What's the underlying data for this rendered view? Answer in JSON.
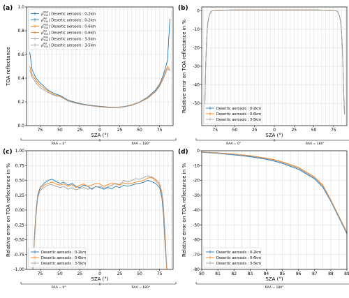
{
  "colors": {
    "s1": "#1f77b4",
    "s2": "#ff7f0e",
    "s3": "#a0a0a0"
  },
  "chart_data": [
    {
      "panel": "(a)",
      "type": "line",
      "xlabel": "SZA (°)",
      "ylabel": "TOA reflectance",
      "x_ticks": [
        "75",
        "50",
        "25",
        "0",
        "25",
        "50",
        "75"
      ],
      "y_ticks": [
        "0.0",
        "0.2",
        "0.4",
        "0.6",
        "0.8",
        "1.0"
      ],
      "ylim": [
        0.0,
        1.0
      ],
      "raa_left": "RAA = 0°",
      "raa_right": "RAA = 180°",
      "legend_position": "top-left",
      "legend": [
        {
          "symbol": "ρ",
          "sup": "Mod",
          "sub": "TOA",
          "label": "| Desertic aerosols : 0-2km",
          "color": "s1"
        },
        {
          "symbol": "ρ",
          "sup": "Ref",
          "sub": "TOA",
          "label": "| Desertic aerosols : 0-2km",
          "color": "s1"
        },
        {
          "symbol": "ρ",
          "sup": "Mod",
          "sub": "TOA",
          "label": "| Desertic aerosols : 0-6km",
          "color": "s2"
        },
        {
          "symbol": "ρ",
          "sup": "Ref",
          "sub": "TOA",
          "label": "| Desertic aerosols : 0-6km",
          "color": "s2"
        },
        {
          "symbol": "ρ",
          "sup": "Mod",
          "sub": "TOA",
          "label": "| Desertic aerosols : 3-5km",
          "color": "s3"
        },
        {
          "symbol": "ρ",
          "sup": "Ref",
          "sub": "TOA",
          "label": "| Desertic aerosols : 3-5km",
          "color": "s3"
        }
      ],
      "x": [
        -88,
        -85,
        -80,
        -75,
        -70,
        -65,
        -60,
        -55,
        -50,
        -45,
        -40,
        -30,
        -20,
        -10,
        0,
        10,
        20,
        30,
        40,
        50,
        60,
        70,
        75,
        80,
        85,
        88
      ],
      "series": [
        {
          "color": "s1",
          "values": [
            0.62,
            0.47,
            0.4,
            0.36,
            0.33,
            0.3,
            0.28,
            0.265,
            0.255,
            0.235,
            0.215,
            0.195,
            0.18,
            0.17,
            0.163,
            0.157,
            0.155,
            0.16,
            0.175,
            0.2,
            0.24,
            0.3,
            0.35,
            0.43,
            0.55,
            0.9
          ]
        },
        {
          "color": "s2",
          "values": [
            0.5,
            0.43,
            0.38,
            0.34,
            0.315,
            0.29,
            0.27,
            0.255,
            0.25,
            0.23,
            0.21,
            0.19,
            0.177,
            0.167,
            0.16,
            0.155,
            0.153,
            0.158,
            0.173,
            0.198,
            0.235,
            0.29,
            0.34,
            0.41,
            0.5,
            0.47
          ]
        },
        {
          "color": "s3",
          "values": [
            0.47,
            0.41,
            0.36,
            0.32,
            0.3,
            0.28,
            0.262,
            0.25,
            0.245,
            0.227,
            0.208,
            0.188,
            0.175,
            0.165,
            0.158,
            0.152,
            0.151,
            0.156,
            0.17,
            0.195,
            0.23,
            0.285,
            0.33,
            0.4,
            0.48,
            0.46
          ]
        }
      ]
    },
    {
      "panel": "(b)",
      "type": "line",
      "xlabel": "SZA (°)",
      "ylabel": "Relative error on TOA reflectance in %",
      "x_ticks": [
        "75",
        "50",
        "25",
        "0",
        "25",
        "50",
        "75"
      ],
      "y_ticks": [
        "0",
        "-10",
        "-20",
        "-30",
        "-40",
        "-50"
      ],
      "ylim": [
        -62,
        2
      ],
      "raa_left": "RAA = 0°",
      "raa_right": "RAA = 180°",
      "legend_position": "lower-left",
      "legend": [
        {
          "label": "Desertic aerosols : 0-2km",
          "color": "s1"
        },
        {
          "label": "Desertic aerosols : 0-6km",
          "color": "s2"
        },
        {
          "label": "Desertic aerosols : 3-5km",
          "color": "s3"
        }
      ],
      "x": [
        -89,
        -88,
        -87,
        -86,
        -85,
        -84,
        -83,
        -82,
        -81,
        -80,
        -78,
        -75,
        -50,
        0,
        50,
        75,
        78,
        80,
        81,
        82,
        83,
        84,
        85,
        86,
        87,
        88,
        89
      ],
      "series": [
        {
          "color": "s1",
          "values": [
            -59,
            -50,
            -30,
            -18,
            -10,
            -6,
            -3.5,
            -2,
            -1,
            -0.5,
            0,
            0.2,
            0.4,
            0.4,
            0.4,
            0.2,
            0,
            -0.5,
            -1,
            -2,
            -3.5,
            -6,
            -10,
            -18,
            -30,
            -45,
            -56
          ]
        },
        {
          "color": "s2",
          "values": [
            -59,
            -50,
            -30,
            -18,
            -10,
            -6,
            -3.5,
            -2,
            -1,
            -0.5,
            0,
            0.2,
            0.4,
            0.4,
            0.4,
            0.2,
            0,
            -0.5,
            -1,
            -2,
            -3.5,
            -6,
            -10,
            -18,
            -30,
            -45,
            -56
          ]
        },
        {
          "color": "s3",
          "values": [
            -59,
            -50,
            -30,
            -18,
            -10,
            -6,
            -3.5,
            -2,
            -1,
            -0.5,
            0,
            0.2,
            0.4,
            0.4,
            0.4,
            0.2,
            0,
            -0.5,
            -1,
            -2,
            -3.5,
            -6,
            -10,
            -18,
            -30,
            -45,
            -56
          ]
        }
      ]
    },
    {
      "panel": "(c)",
      "type": "line",
      "xlabel": "SZA (°)",
      "ylabel": "Relative error on TOA reflectance in %",
      "x_ticks": [
        "75",
        "50",
        "25",
        "0",
        "25",
        "50",
        "75"
      ],
      "y_ticks": [
        "1.00",
        "0.75",
        "0.50",
        "0.25",
        "0.00",
        "-0.25",
        "-0.50",
        "-0.75",
        "-1.00"
      ],
      "ylim": [
        -1.0,
        1.0
      ],
      "raa_left": "RAA = 0°",
      "raa_right": "RAA = 180°",
      "legend_position": "lower-left",
      "legend": [
        {
          "label": "Desertic aerosols : 0-2km",
          "color": "s1"
        },
        {
          "label": "Desertic aerosols : 0-6km",
          "color": "s2"
        },
        {
          "label": "Desertic aerosols : 3-5km",
          "color": "s3"
        }
      ],
      "x": [
        -84,
        -82,
        -80,
        -78,
        -75,
        -70,
        -65,
        -60,
        -55,
        -50,
        -45,
        -40,
        -35,
        -30,
        -25,
        -20,
        -15,
        -10,
        -5,
        0,
        5,
        10,
        15,
        20,
        25,
        30,
        35,
        40,
        45,
        50,
        55,
        60,
        65,
        70,
        75,
        78,
        80,
        82,
        84
      ],
      "series": [
        {
          "color": "s1",
          "values": [
            -1.0,
            -0.4,
            0.0,
            0.25,
            0.38,
            0.45,
            0.5,
            0.52,
            0.48,
            0.45,
            0.47,
            0.42,
            0.45,
            0.4,
            0.38,
            0.42,
            0.4,
            0.35,
            0.4,
            0.38,
            0.35,
            0.38,
            0.36,
            0.4,
            0.38,
            0.42,
            0.4,
            0.42,
            0.44,
            0.45,
            0.47,
            0.5,
            0.48,
            0.45,
            0.38,
            0.2,
            -0.1,
            -0.6,
            -1.0
          ]
        },
        {
          "color": "s2",
          "values": [
            -1.0,
            -0.45,
            -0.05,
            0.22,
            0.35,
            0.42,
            0.45,
            0.47,
            0.44,
            0.42,
            0.44,
            0.4,
            0.43,
            0.38,
            0.42,
            0.44,
            0.4,
            0.42,
            0.45,
            0.44,
            0.4,
            0.43,
            0.45,
            0.44,
            0.42,
            0.46,
            0.44,
            0.45,
            0.47,
            0.48,
            0.5,
            0.54,
            0.55,
            0.5,
            0.42,
            0.25,
            0.0,
            -0.5,
            -1.0
          ]
        },
        {
          "color": "s3",
          "values": [
            -1.0,
            -0.5,
            -0.1,
            0.2,
            0.33,
            0.38,
            0.42,
            0.43,
            0.4,
            0.38,
            0.4,
            0.35,
            0.38,
            0.34,
            0.36,
            0.38,
            0.35,
            0.37,
            0.39,
            0.4,
            0.37,
            0.39,
            0.42,
            0.45,
            0.43,
            0.5,
            0.47,
            0.5,
            0.53,
            0.52,
            0.55,
            0.58,
            0.56,
            0.52,
            0.45,
            0.3,
            0.05,
            -0.4,
            -0.95
          ]
        }
      ]
    },
    {
      "panel": "(d)",
      "type": "line",
      "xlabel": "SZA (°)",
      "ylabel": "Relative error on TOA reflectance in %",
      "x_ticks": [
        "80",
        "81",
        "82",
        "83",
        "84",
        "85",
        "86",
        "87",
        "88",
        "89"
      ],
      "y_ticks": [
        "0",
        "-10",
        "-20",
        "-30",
        "-40",
        "-50",
        "-60",
        "-70",
        "-80"
      ],
      "xlim": [
        80,
        89
      ],
      "ylim": [
        -80,
        0
      ],
      "raa_label": "RAA = 180°",
      "legend_position": "lower-left",
      "legend": [
        {
          "label": "Desertic aerosols : 0-2km",
          "color": "s1"
        },
        {
          "label": "Desertic aerosols : 0-6km",
          "color": "s2"
        },
        {
          "label": "Desertic aerosols : 3-5km",
          "color": "s3"
        }
      ],
      "x": [
        80,
        81,
        82,
        83,
        84,
        84.5,
        85,
        86,
        87,
        87.5,
        88,
        88.5,
        89
      ],
      "series": [
        {
          "color": "s1",
          "values": [
            -1,
            -1.8,
            -2.8,
            -4,
            -5.8,
            -7,
            -8.5,
            -12.5,
            -19,
            -24.5,
            -34,
            -45,
            -56
          ]
        },
        {
          "color": "s2",
          "values": [
            -0.8,
            -1.4,
            -2.2,
            -3.3,
            -5,
            -6,
            -7.5,
            -11.2,
            -17.8,
            -23,
            -33,
            -44,
            -55
          ]
        },
        {
          "color": "s3",
          "values": [
            -0.9,
            -1.6,
            -2.5,
            -3.6,
            -5.4,
            -6.5,
            -8,
            -11.8,
            -18.4,
            -23.8,
            -33.5,
            -44.5,
            -55.5
          ]
        }
      ]
    }
  ]
}
